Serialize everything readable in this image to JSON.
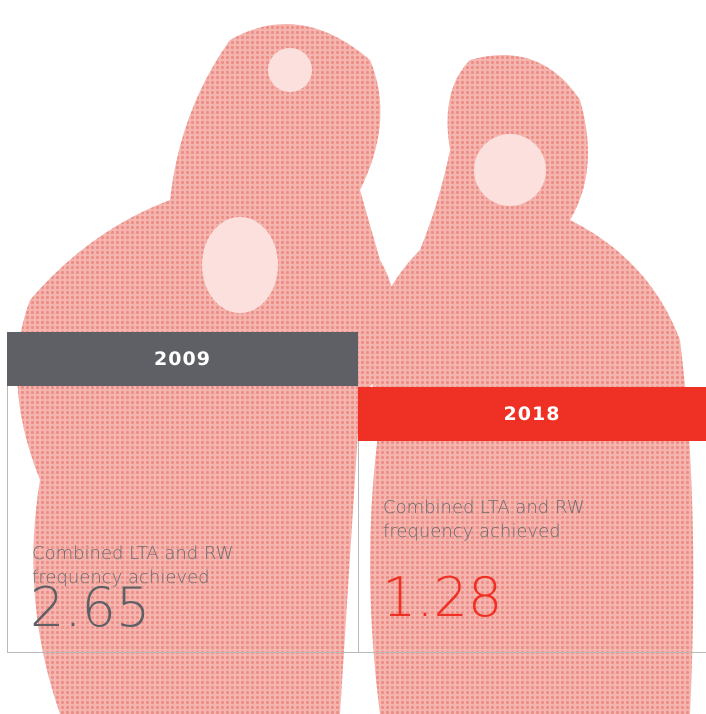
{
  "panels": [
    {
      "year": "2009",
      "label": "Combined LTA and RW frequency achieved",
      "value": "2.65"
    },
    {
      "year": "2018",
      "label": "Combined LTA and RW frequency achieved",
      "value": "1.28"
    }
  ]
}
